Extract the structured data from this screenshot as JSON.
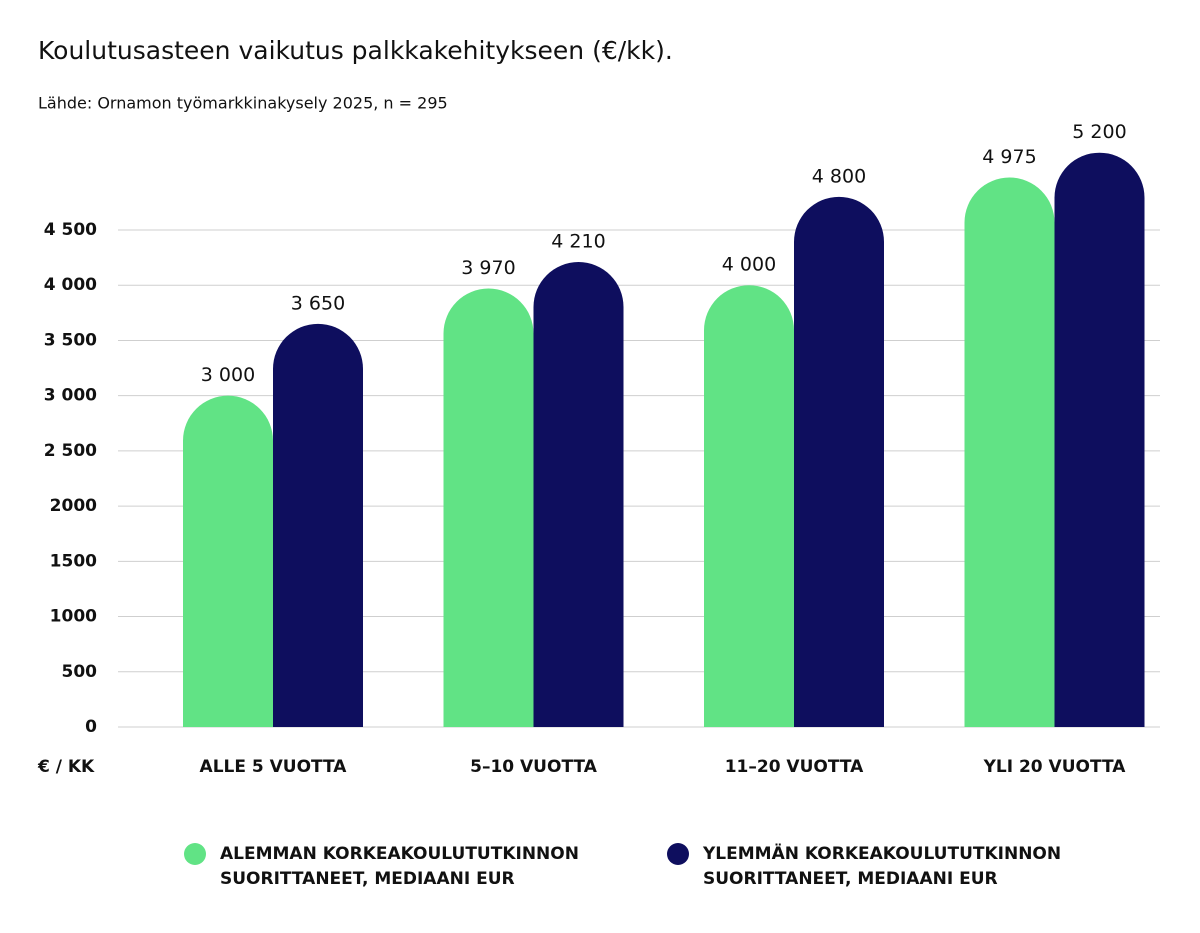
{
  "chart_data": {
    "type": "bar",
    "title": "Koulutusasteen vaikutus palkkakehitykseen (€/kk).",
    "subtitle": "Lähde: Ornamon työmarkkinakysely 2025, n = 295",
    "ylabel": "€ / KK",
    "categories": [
      "ALLE 5 VUOTTA",
      "5–10 VUOTTA",
      "11–20 VUOTTA",
      "YLI 20 VUOTTA"
    ],
    "series": [
      {
        "name": "ALEMMAN KORKEAKOULUTUTKINNON SUORITTANEET, MEDIAANI EUR",
        "color": "#61e385",
        "values": [
          3000,
          3970,
          4000,
          4975
        ],
        "value_labels": [
          "3 000",
          "3 970",
          "4 000",
          "4 975"
        ]
      },
      {
        "name": "YLEMMÄN KORKEAKOULUTUTKINNON SUORITTANEET, MEDIAANI EUR",
        "color": "#0e0e5e",
        "values": [
          3650,
          4210,
          4800,
          5200
        ],
        "value_labels": [
          "3 650",
          "4 210",
          "4 800",
          "5 200"
        ]
      }
    ],
    "ylim": [
      0,
      4500
    ],
    "yticks": [
      0,
      500,
      1000,
      1500,
      2000,
      {
        "value": 2500,
        "label": "2 500"
      },
      {
        "value": 3000,
        "label": "3 000"
      },
      {
        "value": 3500,
        "label": "3 500"
      },
      {
        "value": 4000,
        "label": "4 000"
      },
      {
        "value": 4500,
        "label": "4 500"
      }
    ],
    "grid": true,
    "legend": "bottom"
  }
}
